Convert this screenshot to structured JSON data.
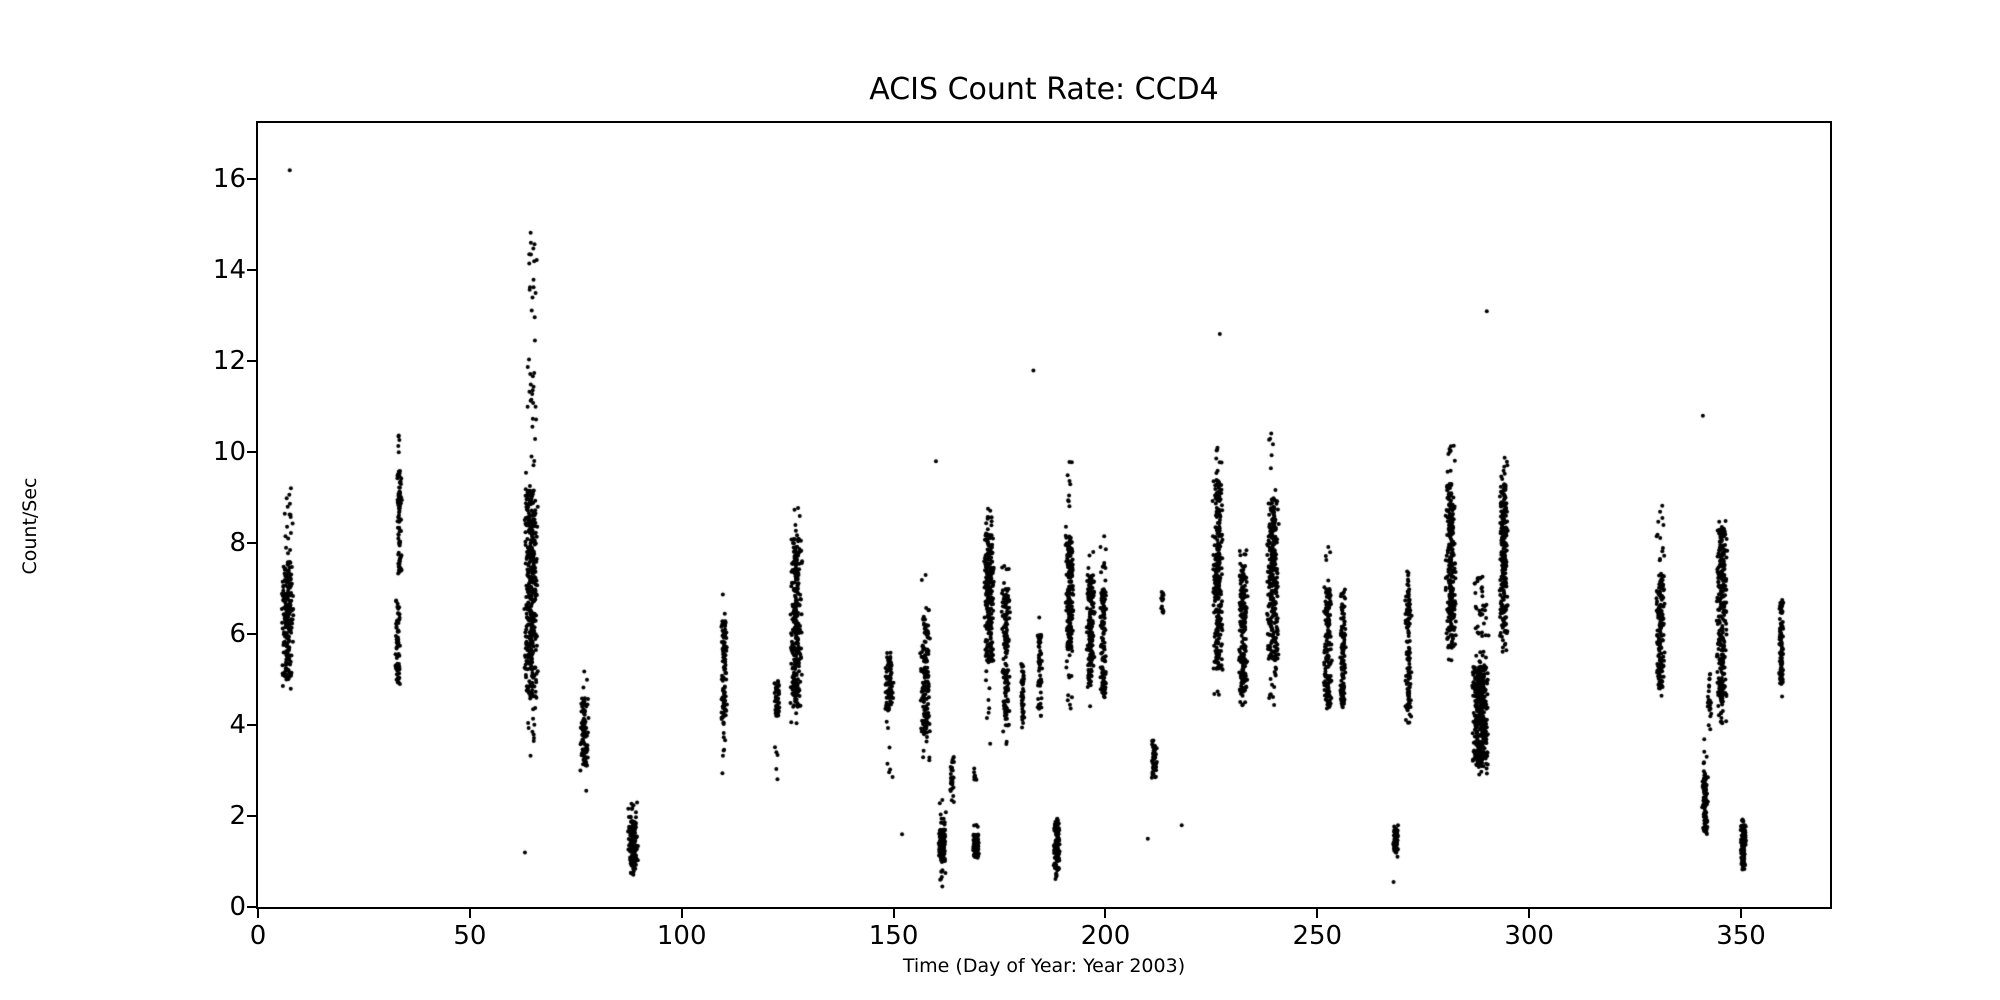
{
  "title": "ACIS Count Rate: CCD4",
  "chart_data": {
    "type": "scatter",
    "title": "ACIS Count Rate: CCD4",
    "xlabel": "Time (Day of Year: Year 2003)",
    "ylabel": "Count/Sec",
    "xlim": [
      0,
      371
    ],
    "ylim": [
      0,
      17.24
    ],
    "xticks": [
      0,
      50,
      100,
      150,
      200,
      250,
      300,
      350
    ],
    "yticks": [
      0,
      2,
      4,
      6,
      8,
      10,
      12,
      14,
      16
    ],
    "grid": false,
    "legend": null,
    "marker_color": "#000000",
    "marker_size_px": 4,
    "description": "Dense vertical clusters of count-rate samples versus day of year 2003; clusters given as day center, day width, point count, dense core y-range and full y-range.",
    "clusters": [
      {
        "d": 7,
        "w": 3.0,
        "n": 240,
        "core": [
          5.0,
          7.6
        ],
        "range": [
          4.7,
          9.3
        ]
      },
      {
        "d": 33,
        "w": 1.2,
        "n": 70,
        "core": [
          4.9,
          6.6
        ],
        "range": [
          4.8,
          6.8
        ]
      },
      {
        "d": 33.4,
        "w": 1.2,
        "n": 90,
        "core": [
          7.3,
          9.6
        ],
        "range": [
          7.0,
          10.5
        ]
      },
      {
        "d": 64.5,
        "w": 3.5,
        "n": 450,
        "core": [
          4.6,
          9.2
        ],
        "range": [
          3.3,
          14.9
        ]
      },
      {
        "d": 77,
        "w": 2.0,
        "n": 110,
        "core": [
          3.0,
          4.6
        ],
        "range": [
          2.5,
          5.3
        ]
      },
      {
        "d": 88.5,
        "w": 2.5,
        "n": 160,
        "core": [
          0.9,
          1.9
        ],
        "range": [
          0.7,
          2.3
        ]
      },
      {
        "d": 110,
        "w": 1.4,
        "n": 120,
        "core": [
          4.0,
          6.3
        ],
        "range": [
          2.9,
          7.0
        ]
      },
      {
        "d": 122.5,
        "w": 1.5,
        "n": 55,
        "core": [
          4.2,
          5.0
        ],
        "range": [
          2.5,
          5.1
        ]
      },
      {
        "d": 127,
        "w": 3.0,
        "n": 280,
        "core": [
          4.4,
          8.1
        ],
        "range": [
          4.0,
          9.3
        ]
      },
      {
        "d": 149,
        "w": 2.0,
        "n": 95,
        "core": [
          4.3,
          5.5
        ],
        "range": [
          2.6,
          5.6
        ]
      },
      {
        "d": 157.5,
        "w": 2.5,
        "n": 170,
        "core": [
          3.8,
          6.4
        ],
        "range": [
          3.2,
          7.3
        ]
      },
      {
        "d": 161.5,
        "w": 1.8,
        "n": 160,
        "core": [
          1.0,
          1.7
        ],
        "range": [
          0.6,
          2.4
        ]
      },
      {
        "d": 163.8,
        "w": 1.0,
        "n": 28,
        "core": [
          2.3,
          3.3
        ],
        "range": [
          2.2,
          3.4
        ]
      },
      {
        "d": 169.5,
        "w": 1.6,
        "n": 130,
        "core": [
          1.1,
          1.6
        ],
        "range": [
          1.0,
          1.9
        ]
      },
      {
        "d": 169.2,
        "w": 0.8,
        "n": 8,
        "core": [
          2.8,
          3.1
        ],
        "range": [
          2.8,
          3.1
        ]
      },
      {
        "d": 172.5,
        "w": 2.5,
        "n": 260,
        "core": [
          5.4,
          8.2
        ],
        "range": [
          3.4,
          8.8
        ]
      },
      {
        "d": 176.5,
        "w": 2.0,
        "n": 150,
        "core": [
          4.2,
          7.0
        ],
        "range": [
          3.5,
          7.5
        ]
      },
      {
        "d": 180.5,
        "w": 1.0,
        "n": 45,
        "core": [
          4.0,
          5.3
        ],
        "range": [
          3.9,
          5.5
        ]
      },
      {
        "d": 184.5,
        "w": 1.2,
        "n": 60,
        "core": [
          4.2,
          6.0
        ],
        "range": [
          4.0,
          6.4
        ]
      },
      {
        "d": 188.5,
        "w": 1.5,
        "n": 130,
        "core": [
          0.8,
          1.9
        ],
        "range": [
          0.5,
          2.1
        ]
      },
      {
        "d": 191.5,
        "w": 2.0,
        "n": 220,
        "core": [
          5.6,
          8.2
        ],
        "range": [
          4.3,
          9.8
        ]
      },
      {
        "d": 196.5,
        "w": 2.0,
        "n": 180,
        "core": [
          5.0,
          7.3
        ],
        "range": [
          4.4,
          8.0
        ]
      },
      {
        "d": 199.5,
        "w": 1.6,
        "n": 135,
        "core": [
          4.6,
          7.0
        ],
        "range": [
          4.4,
          8.2
        ]
      },
      {
        "d": 211.5,
        "w": 1.3,
        "n": 60,
        "core": [
          2.9,
          3.7
        ],
        "range": [
          2.8,
          3.8
        ]
      },
      {
        "d": 213.5,
        "w": 0.8,
        "n": 16,
        "core": [
          6.3,
          7.0
        ],
        "range": [
          6.2,
          7.1
        ]
      },
      {
        "d": 226.5,
        "w": 2.5,
        "n": 280,
        "core": [
          5.2,
          9.4
        ],
        "range": [
          4.4,
          10.1
        ]
      },
      {
        "d": 232.5,
        "w": 2.2,
        "n": 200,
        "core": [
          4.5,
          7.5
        ],
        "range": [
          4.3,
          7.9
        ]
      },
      {
        "d": 239.5,
        "w": 3.0,
        "n": 300,
        "core": [
          5.4,
          9.0
        ],
        "range": [
          4.3,
          10.5
        ]
      },
      {
        "d": 252.5,
        "w": 2.0,
        "n": 170,
        "core": [
          4.4,
          7.0
        ],
        "range": [
          4.2,
          8.2
        ]
      },
      {
        "d": 256,
        "w": 1.5,
        "n": 115,
        "core": [
          4.4,
          6.6
        ],
        "range": [
          4.2,
          7.0
        ]
      },
      {
        "d": 268.5,
        "w": 1.2,
        "n": 85,
        "core": [
          1.2,
          1.7
        ],
        "range": [
          1.1,
          1.8
        ]
      },
      {
        "d": 271.5,
        "w": 1.6,
        "n": 125,
        "core": [
          4.3,
          7.2
        ],
        "range": [
          4.0,
          7.6
        ]
      },
      {
        "d": 281.5,
        "w": 2.6,
        "n": 260,
        "core": [
          5.7,
          9.3
        ],
        "range": [
          5.2,
          10.2
        ]
      },
      {
        "d": 288.5,
        "w": 4.0,
        "n": 460,
        "core": [
          3.1,
          5.3
        ],
        "range": [
          2.9,
          7.3
        ]
      },
      {
        "d": 294,
        "w": 2.0,
        "n": 240,
        "core": [
          6.0,
          9.3
        ],
        "range": [
          5.6,
          10.0
        ]
      },
      {
        "d": 331,
        "w": 2.0,
        "n": 180,
        "core": [
          4.8,
          7.3
        ],
        "range": [
          4.3,
          9.1
        ]
      },
      {
        "d": 341.5,
        "w": 1.5,
        "n": 100,
        "core": [
          1.6,
          2.9
        ],
        "range": [
          1.5,
          3.7
        ]
      },
      {
        "d": 342.5,
        "w": 1.0,
        "n": 22,
        "core": [
          4.1,
          5.2
        ],
        "range": [
          3.9,
          5.3
        ]
      },
      {
        "d": 345.5,
        "w": 2.6,
        "n": 280,
        "core": [
          4.4,
          8.3
        ],
        "range": [
          4.0,
          8.6
        ]
      },
      {
        "d": 350.5,
        "w": 1.3,
        "n": 120,
        "core": [
          0.9,
          1.8
        ],
        "range": [
          0.8,
          2.0
        ]
      },
      {
        "d": 359.5,
        "w": 1.1,
        "n": 100,
        "core": [
          4.9,
          6.7
        ],
        "range": [
          4.6,
          6.9
        ]
      }
    ],
    "outliers": [
      [
        7.5,
        16.2
      ],
      [
        63,
        1.2
      ],
      [
        152,
        1.6
      ],
      [
        160,
        9.8
      ],
      [
        161.5,
        0.45
      ],
      [
        183,
        11.8
      ],
      [
        210,
        1.5
      ],
      [
        218,
        1.8
      ],
      [
        227,
        12.6
      ],
      [
        268,
        0.55
      ],
      [
        290,
        13.1
      ],
      [
        341,
        10.8
      ]
    ]
  }
}
